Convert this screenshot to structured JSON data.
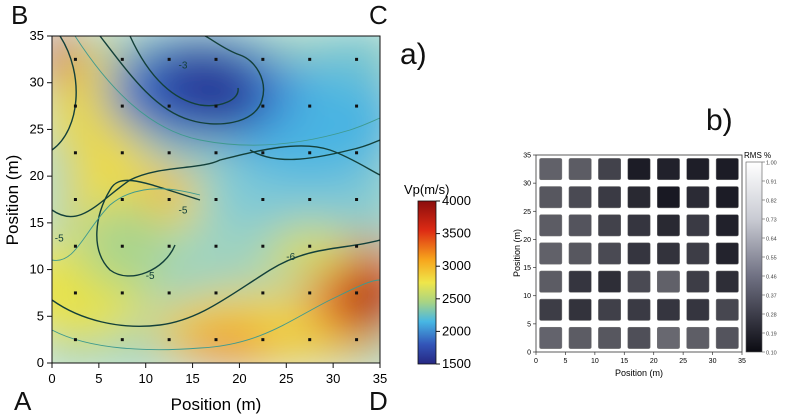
{
  "corners": {
    "top_left": "B",
    "top_right": "C",
    "bottom_left": "A",
    "bottom_right": "D"
  },
  "panel_labels": {
    "a": "a)",
    "b": "b)"
  },
  "chart_data": [
    {
      "type": "heatmap",
      "title": "",
      "xlabel": "Position (m)",
      "ylabel": "Position (m)",
      "xlim": [
        0,
        35
      ],
      "ylim": [
        0,
        35
      ],
      "xticks": [
        0,
        5,
        10,
        15,
        20,
        25,
        30,
        35
      ],
      "yticks": [
        0,
        5,
        10,
        15,
        20,
        25,
        30,
        35
      ],
      "colorbar": {
        "label": "Vp(m/s)",
        "min": 1500,
        "max": 4000,
        "ticks": [
          4000,
          3500,
          3000,
          2500,
          2000,
          1500
        ]
      },
      "contour_labels": [
        {
          "text": "-3",
          "x": 13.5,
          "y": 31.5
        },
        {
          "text": "-5",
          "x": 13.5,
          "y": 16
        },
        {
          "text": "-5",
          "x": 10,
          "y": 9
        },
        {
          "text": "-6",
          "x": 25,
          "y": 11
        },
        {
          "text": "-5",
          "x": 0.3,
          "y": 13
        }
      ],
      "sample_points_x": [
        2.5,
        7.5,
        12.5,
        17.5,
        22.5,
        27.5,
        32.5
      ],
      "sample_points_y": [
        2.5,
        7.5,
        12.5,
        17.5,
        22.5,
        27.5,
        32.5
      ]
    },
    {
      "type": "heatmap",
      "title": "",
      "xlabel": "Position (m)",
      "ylabel": "Position (m)",
      "xlim": [
        0,
        35
      ],
      "ylim": [
        0,
        35
      ],
      "xticks": [
        0,
        5,
        10,
        15,
        20,
        25,
        30,
        35
      ],
      "yticks": [
        0,
        5,
        10,
        15,
        20,
        25,
        30,
        35
      ],
      "colorbar": {
        "label": "RMS %",
        "min": 0.1,
        "max": 1.0,
        "ticks": [
          "1.00",
          "0.91",
          "0.82",
          "0.73",
          "0.64",
          "0.55",
          "0.46",
          "0.37",
          "0.28",
          "0.19",
          "0.10"
        ]
      },
      "grid_rows_top_to_bottom": [
        [
          0.42,
          0.4,
          0.3,
          0.15,
          0.17,
          0.16,
          0.15
        ],
        [
          0.38,
          0.33,
          0.27,
          0.2,
          0.14,
          0.21,
          0.15
        ],
        [
          0.4,
          0.37,
          0.3,
          0.25,
          0.2,
          0.27,
          0.17
        ],
        [
          0.42,
          0.38,
          0.33,
          0.25,
          0.24,
          0.28,
          0.18
        ],
        [
          0.4,
          0.25,
          0.22,
          0.33,
          0.42,
          0.28,
          0.22
        ],
        [
          0.28,
          0.24,
          0.29,
          0.27,
          0.25,
          0.25,
          0.32
        ],
        [
          0.43,
          0.4,
          0.38,
          0.35,
          0.45,
          0.41,
          0.37
        ]
      ]
    }
  ]
}
